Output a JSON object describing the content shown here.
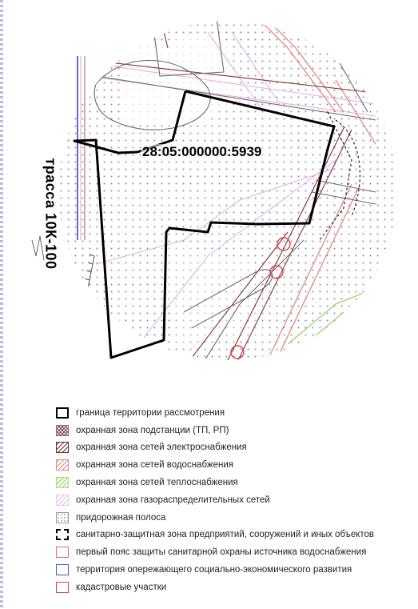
{
  "map": {
    "road_label": "трасса 10К-100",
    "parcel_label": "28:05:000000:5939"
  },
  "legend": {
    "items": [
      {
        "key": "boundary",
        "label": "граница территории рассмотрения",
        "color": "#000000"
      },
      {
        "key": "substation",
        "label": "охранная зона подстанции (ТП, РП)",
        "color": "#8c3b5e"
      },
      {
        "key": "electric",
        "label": "охранная зона сетей электроснабжения",
        "color": "#6b2a2a"
      },
      {
        "key": "water",
        "label": "охранная зона сетей водоснабжения",
        "color": "#e8877f"
      },
      {
        "key": "heat",
        "label": "охранная зона сетей теплоснабжения",
        "color": "#a8e07a"
      },
      {
        "key": "gas",
        "label": "охранная зона газораспределительных сетей",
        "color": "#eab7e8"
      },
      {
        "key": "roadside",
        "label": "придорожная полоса",
        "color": "#9999aa"
      },
      {
        "key": "sanitary",
        "label": "санитарно-защитная зона предприятий, сооружений и иных объектов",
        "color": "#000000"
      },
      {
        "key": "water_belt",
        "label": "первый пояс защиты санитарной охраны источника водоснабжения",
        "color": "#e06c6c"
      },
      {
        "key": "tor",
        "label": "территория опережающего социально-экономического развития",
        "color": "#4060c8"
      },
      {
        "key": "cadastral",
        "label": "кадастровые участки",
        "color": "#e04040"
      }
    ]
  }
}
